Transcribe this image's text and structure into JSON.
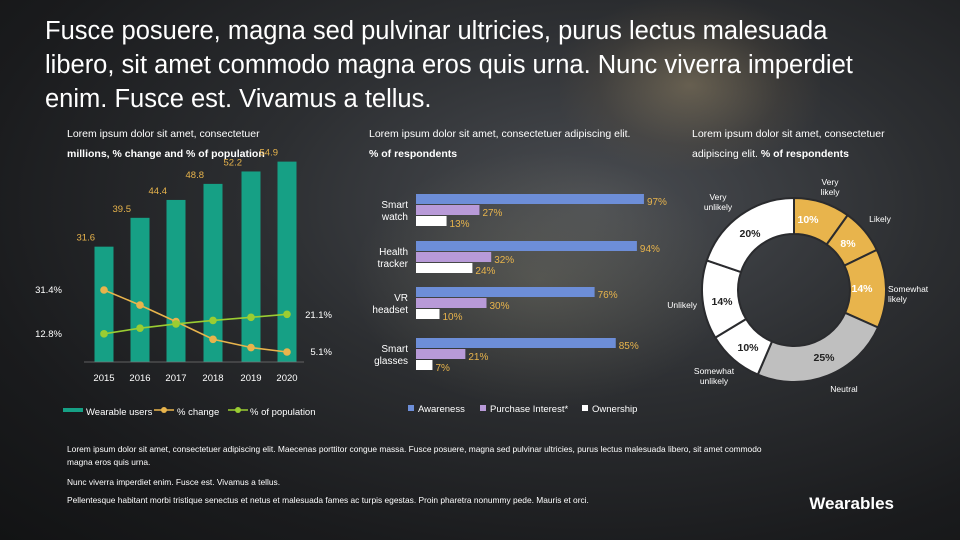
{
  "title": "Fusce posuere, magna sed pulvinar ultricies, purus lectus malesuada libero, sit amet commodo magna eros quis urna. Nunc viverra imperdiet enim. Fusce est. Vivamus a tellus.",
  "charts": [
    {
      "subtitle": "Lorem ipsum dolor sit amet, consectetuer",
      "caption": "millions, % change and % of population"
    },
    {
      "subtitle": "Lorem ipsum dolor sit amet, consectetuer adipiscing elit.",
      "caption": "% of respondents"
    },
    {
      "subtitle": "Lorem ipsum dolor sit amet, consectetuer adipiscing elit.",
      "caption": "% of respondents"
    }
  ],
  "notes": [
    "Lorem ipsum dolor sit amet, consectetuer adipiscing elit. Maecenas porttitor congue massa. Fusce posuere, magna sed pulvinar ultricies, purus lectus malesuada libero, sit amet commodo magna eros quis urna.",
    "Nunc viverra imperdiet enim. Fusce est. Vivamus a tellus.",
    "Pellentesque habitant morbi tristique senectus et netus et malesuada fames ac turpis egestas. Proin pharetra nonummy pede. Mauris et orci."
  ],
  "brand": "Wearables",
  "colors": {
    "bar": "#16a085",
    "change": "#e8b44c",
    "population": "#9acd32",
    "awareness": "#6d8ed8",
    "interest": "#b89ad8",
    "ownership": "#ffffff",
    "bar_label": "#e8b44c"
  },
  "chart_data": [
    {
      "type": "bar",
      "categories": [
        "2015",
        "2016",
        "2017",
        "2018",
        "2019",
        "2020"
      ],
      "series": [
        {
          "name": "Wearable users",
          "type": "bar",
          "values": [
            31.6,
            39.5,
            44.4,
            48.8,
            52.2,
            54.9
          ],
          "labels": [
            "31.6",
            "39.5",
            "44.4",
            "48.8",
            "52.2",
            "54.9"
          ]
        },
        {
          "name": "% change",
          "type": "line",
          "values": [
            31.4,
            25.0,
            18.0,
            10.5,
            7.0,
            5.1
          ],
          "labels": [
            "31.4%",
            "",
            "",
            "",
            "",
            "5.1%"
          ]
        },
        {
          "name": "% of population",
          "type": "line",
          "values": [
            12.8,
            15.2,
            17.0,
            18.5,
            19.8,
            21.1
          ],
          "labels": [
            "12.8%",
            "",
            "",
            "",
            "",
            "21.1%"
          ]
        }
      ],
      "legend_position": "bottom"
    },
    {
      "type": "bar",
      "orientation": "horizontal",
      "categories": [
        "Smart watch",
        "Health tracker",
        "VR headset",
        "Smart glasses"
      ],
      "series": [
        {
          "name": "Awareness",
          "values": [
            97,
            94,
            76,
            85
          ]
        },
        {
          "name": "Purchase Interest*",
          "values": [
            27,
            32,
            30,
            21
          ]
        },
        {
          "name": "Ownership",
          "values": [
            13,
            24,
            10,
            7
          ]
        }
      ],
      "value_labels": [
        [
          "97%",
          "27%",
          "13%"
        ],
        [
          "94%",
          "32%",
          "24%"
        ],
        [
          "76%",
          "30%",
          "10%"
        ],
        [
          "85%",
          "21%",
          "7%"
        ]
      ],
      "legend_position": "bottom"
    },
    {
      "type": "pie",
      "donut": true,
      "slices": [
        {
          "name": "Very likely",
          "value": 10,
          "label": "10%",
          "color": "#e8b44c"
        },
        {
          "name": "Likely",
          "value": 8,
          "label": "8%",
          "color": "#e8b44c"
        },
        {
          "name": "Somewhat likely",
          "value": 14,
          "label": "14%",
          "color": "#e8b44c"
        },
        {
          "name": "Neutral",
          "value": 25,
          "label": "25%",
          "color": "#bfbfbf"
        },
        {
          "name": "Somewhat unlikely",
          "value": 10,
          "label": "10%",
          "color": "#ffffff"
        },
        {
          "name": "Unlikely",
          "value": 14,
          "label": "14%",
          "color": "#ffffff"
        },
        {
          "name": "Very unlikely",
          "value": 20,
          "label": "20%",
          "color": "#ffffff"
        }
      ],
      "category_labels": [
        "Very likely",
        "Likely",
        "Somewhat likely",
        "Neutral",
        "Somewhat unlikely",
        "Unlikely",
        "Very unlikely"
      ]
    }
  ]
}
